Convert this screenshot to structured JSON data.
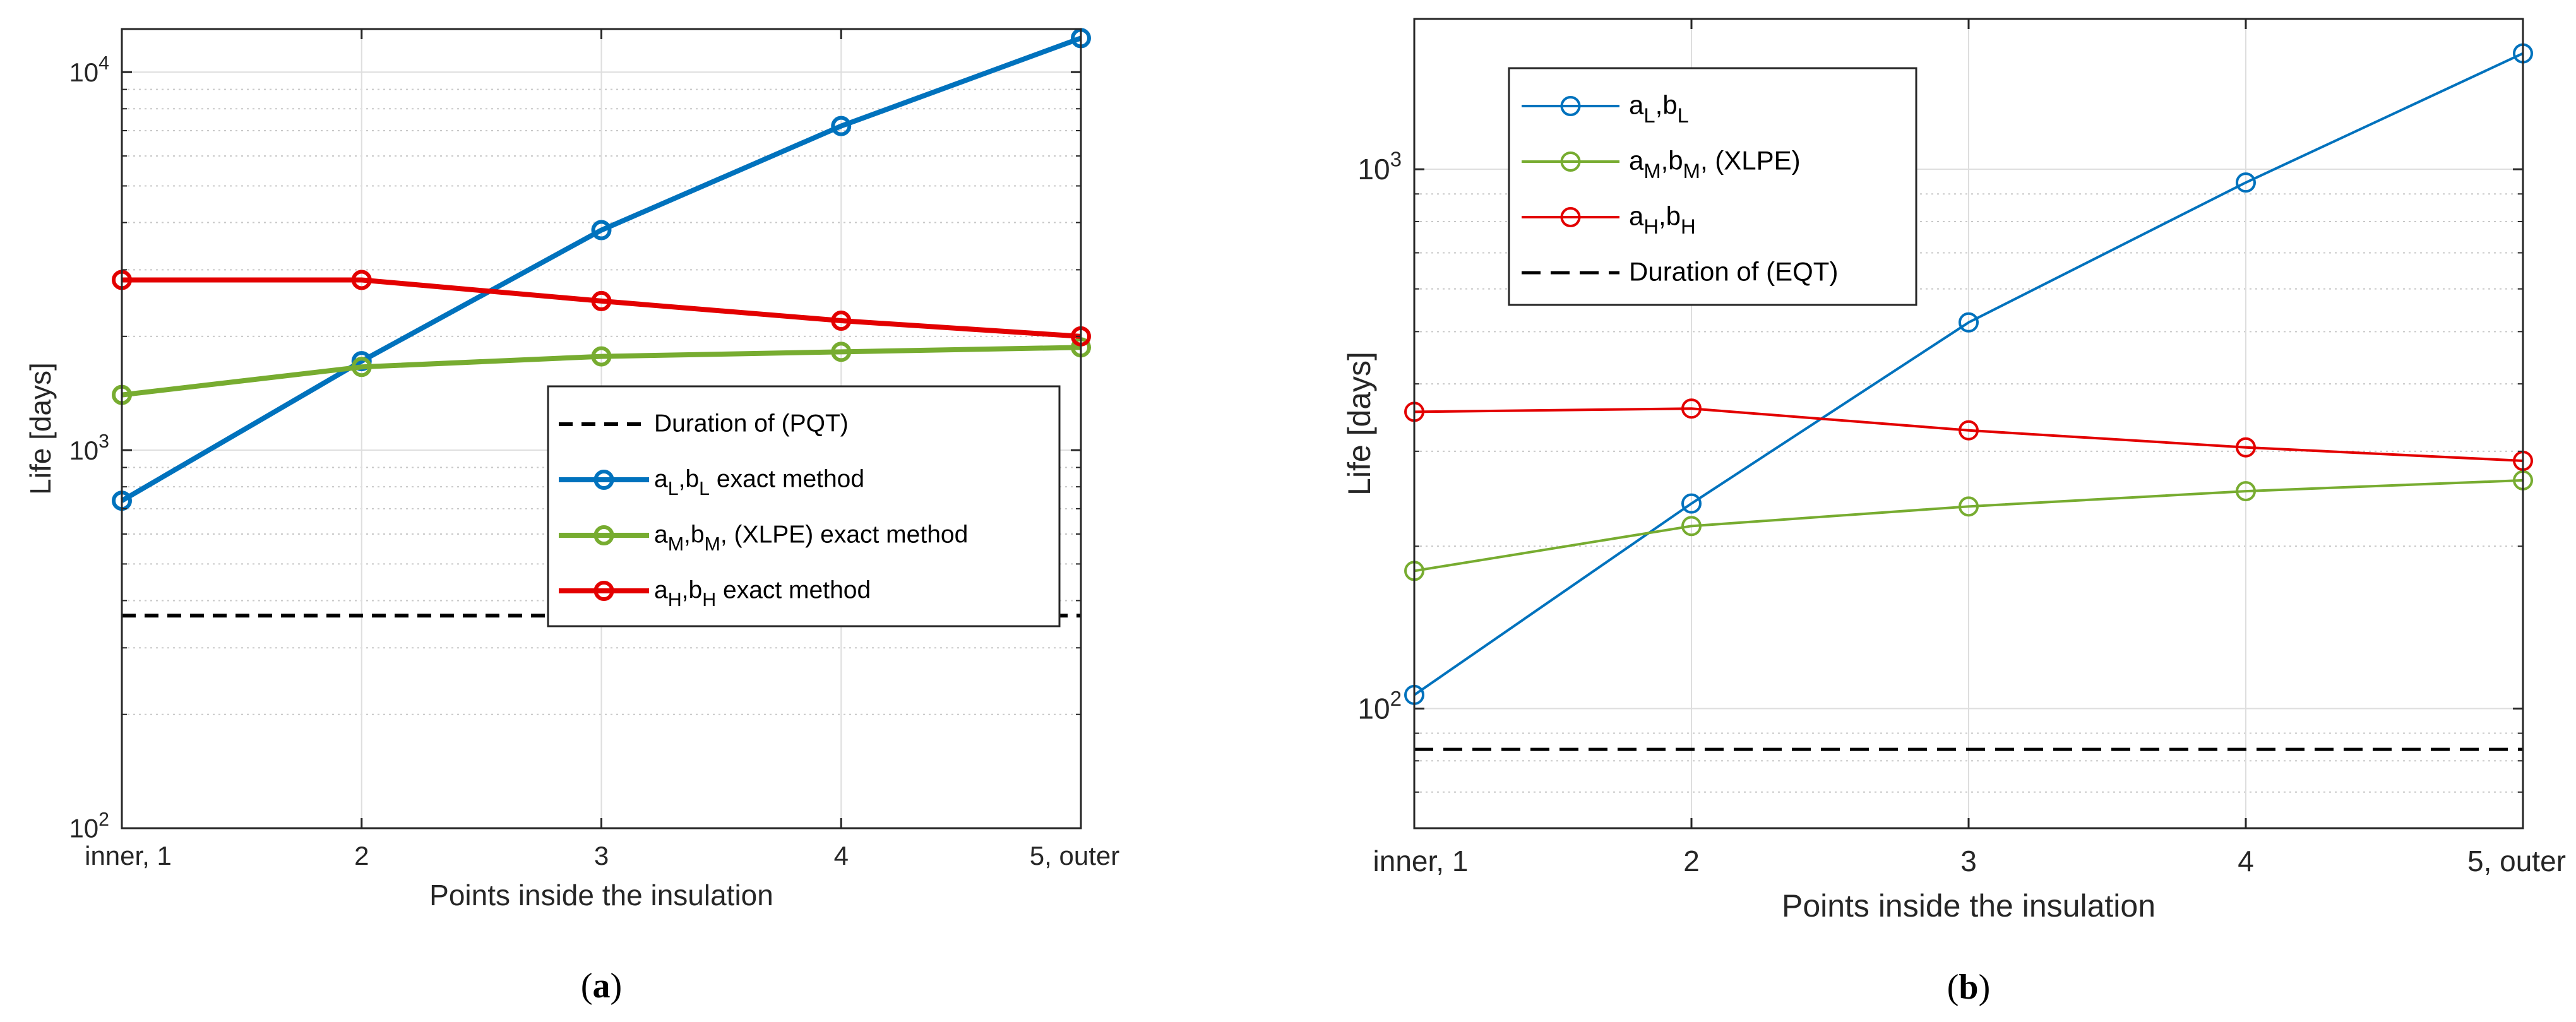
{
  "chart_data": [
    {
      "type": "line",
      "panel_label": "a",
      "title": "",
      "xlabel": "Points inside the insulation",
      "ylabel": "Life [days]",
      "yscale": "log",
      "ylim": [
        100,
        13000
      ],
      "grid": true,
      "minor_grid": true,
      "categories": [
        "inner, 1",
        "2",
        "3",
        "4",
        "5, outer"
      ],
      "y_ticks": [
        100,
        1000,
        10000
      ],
      "y_tick_labels": [
        {
          "base": "10",
          "exp": "2"
        },
        {
          "base": "10",
          "exp": "3"
        },
        {
          "base": "10",
          "exp": "4"
        }
      ],
      "legend_position": "center-right",
      "series": [
        {
          "name": "Duration of (PQT)",
          "legend": [
            {
              "t": "Duration of (PQT)"
            }
          ],
          "color": "#000000",
          "style": "dashed",
          "marker": "none",
          "values": [
            365,
            365,
            365,
            365,
            365
          ]
        },
        {
          "name": "aL,bL exact method",
          "legend": [
            {
              "t": "a"
            },
            {
              "t": "L",
              "s": "sub"
            },
            {
              "t": ",b"
            },
            {
              "t": "L",
              "s": "sub"
            },
            {
              "t": " exact method"
            }
          ],
          "color": "#0072BD",
          "style": "solid",
          "marker": "circle",
          "values": [
            735,
            1720,
            3820,
            7200,
            12300
          ]
        },
        {
          "name": "aM,bM, (XLPE) exact method",
          "legend": [
            {
              "t": "a"
            },
            {
              "t": "M",
              "s": "sub"
            },
            {
              "t": ",b"
            },
            {
              "t": "M",
              "s": "sub"
            },
            {
              "t": ", (XLPE) exact method"
            }
          ],
          "color": "#77AC30",
          "style": "solid",
          "marker": "circle",
          "values": [
            1400,
            1660,
            1770,
            1820,
            1870
          ]
        },
        {
          "name": "aH,bH exact method",
          "legend": [
            {
              "t": "a"
            },
            {
              "t": "H",
              "s": "sub"
            },
            {
              "t": ",b"
            },
            {
              "t": "H",
              "s": "sub"
            },
            {
              "t": " exact method"
            }
          ],
          "color": "#E30000",
          "style": "solid",
          "marker": "circle",
          "values": [
            2820,
            2820,
            2480,
            2200,
            2000
          ]
        }
      ]
    },
    {
      "type": "line",
      "panel_label": "b",
      "title": "",
      "xlabel": "Points inside the insulation",
      "ylabel": "Life [days]",
      "yscale": "log",
      "ylim": [
        60,
        1900
      ],
      "grid": true,
      "minor_grid": true,
      "categories": [
        "inner, 1",
        "2",
        "3",
        "4",
        "5, outer"
      ],
      "y_ticks": [
        100,
        1000
      ],
      "y_tick_labels": [
        {
          "base": "10",
          "exp": "2"
        },
        {
          "base": "10",
          "exp": "3"
        }
      ],
      "legend_position": "top-left",
      "series": [
        {
          "name": "aL,bL",
          "legend": [
            {
              "t": "a"
            },
            {
              "t": "L",
              "s": "sub"
            },
            {
              "t": ",b"
            },
            {
              "t": "L",
              "s": "sub"
            }
          ],
          "color": "#0072BD",
          "style": "solid",
          "marker": "circle",
          "values": [
            106,
            240,
            520,
            945,
            1640
          ]
        },
        {
          "name": "aM,bM, (XLPE)",
          "legend": [
            {
              "t": "a"
            },
            {
              "t": "M",
              "s": "sub"
            },
            {
              "t": ",b"
            },
            {
              "t": "M",
              "s": "sub"
            },
            {
              "t": ", (XLPE)"
            }
          ],
          "color": "#77AC30",
          "style": "solid",
          "marker": "circle",
          "values": [
            180,
            218,
            237,
            253,
            265
          ]
        },
        {
          "name": "aH,bH",
          "legend": [
            {
              "t": "a"
            },
            {
              "t": "H",
              "s": "sub"
            },
            {
              "t": ",b"
            },
            {
              "t": "H",
              "s": "sub"
            }
          ],
          "color": "#E30000",
          "style": "solid",
          "marker": "circle",
          "values": [
            355,
            360,
            328,
            305,
            288
          ]
        },
        {
          "name": "Duration of (EQT)",
          "legend": [
            {
              "t": "Duration of (EQT)"
            }
          ],
          "color": "#000000",
          "style": "dashed",
          "marker": "none",
          "values": [
            84,
            84,
            84,
            84,
            84
          ]
        }
      ]
    }
  ]
}
